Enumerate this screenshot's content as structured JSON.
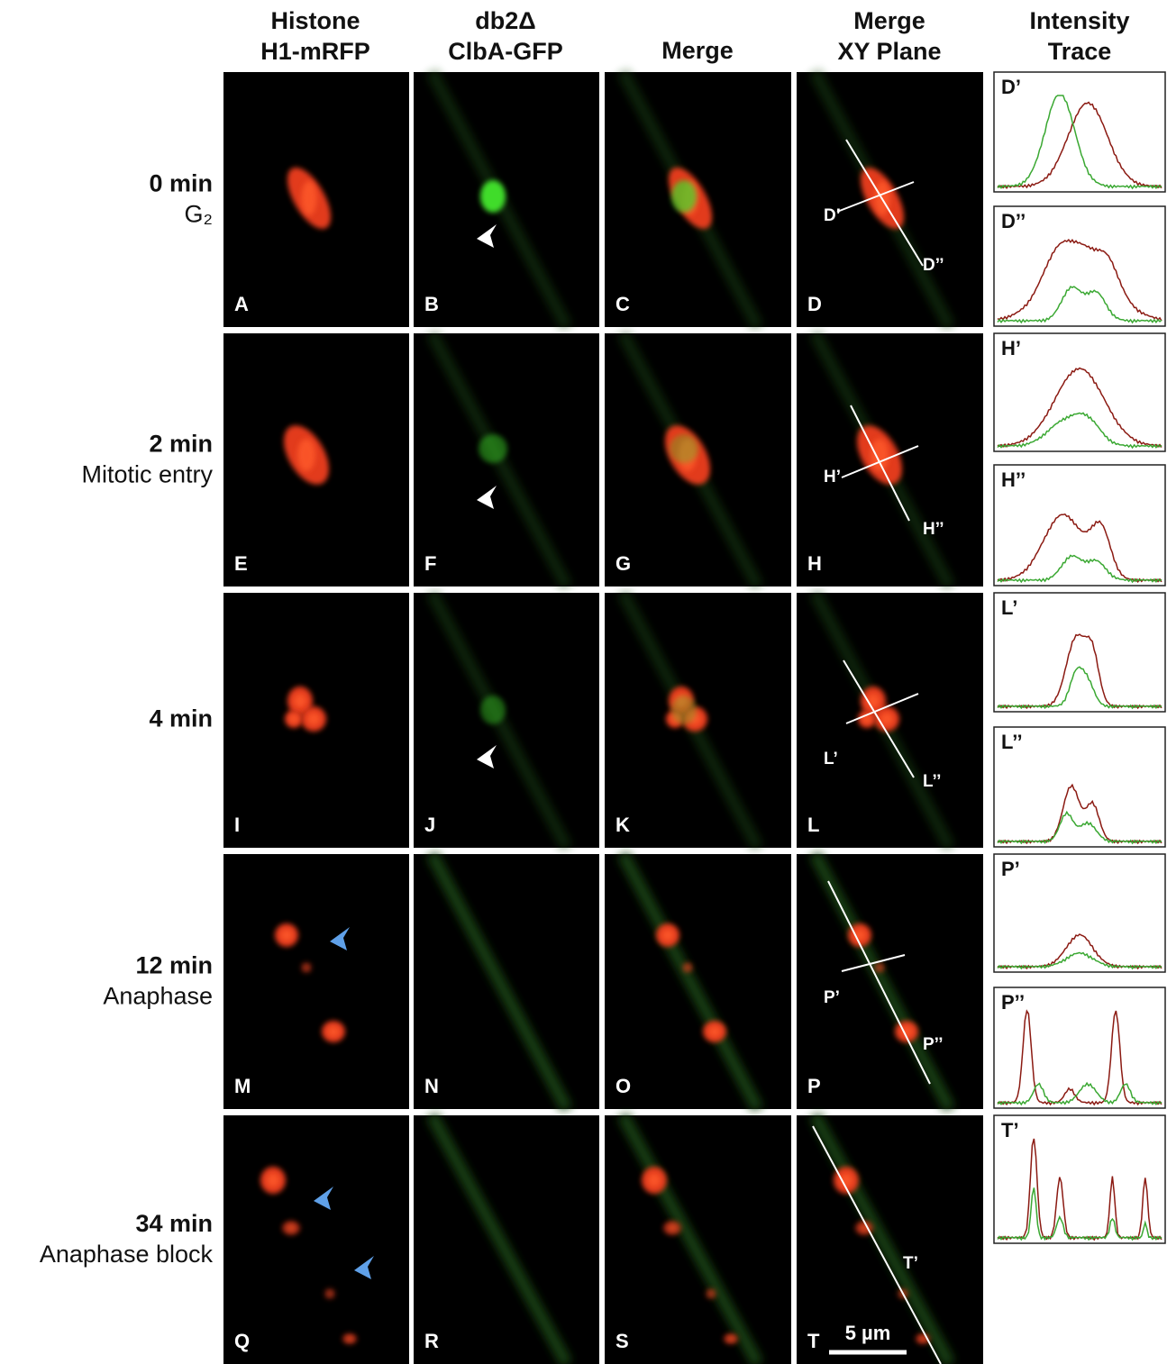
{
  "header": {
    "columns": [
      [
        "Histone",
        "H1-mRFP"
      ],
      [
        "db2Δ",
        "ClbA-GFP"
      ],
      [
        "Merge"
      ],
      [
        "Merge",
        "XY Plane"
      ],
      [
        "Intensity",
        "Trace"
      ]
    ]
  },
  "rows": [
    {
      "time": "0 min",
      "stage": "G₂",
      "panels": [
        "A",
        "B",
        "C",
        "D"
      ],
      "line_labels": [
        "D’",
        "D’’"
      ],
      "traces": [
        "D’",
        "D’’"
      ]
    },
    {
      "time": "2 min",
      "stage": "Mitotic entry",
      "panels": [
        "E",
        "F",
        "G",
        "H"
      ],
      "line_labels": [
        "H’",
        "H’’"
      ],
      "traces": [
        "H’",
        "H’’"
      ]
    },
    {
      "time": "4 min",
      "panels": [
        "I",
        "J",
        "K",
        "L"
      ],
      "line_labels": [
        "L’",
        "L’’"
      ],
      "traces": [
        "L’",
        "L’’"
      ]
    },
    {
      "time": "12 min",
      "stage": "Anaphase",
      "panels": [
        "M",
        "N",
        "O",
        "P"
      ],
      "line_labels": [
        "P’",
        "P’’"
      ],
      "traces": [
        "P’",
        "P’’"
      ]
    },
    {
      "time": "34 min",
      "stage": "Anaphase block",
      "panels": [
        "Q",
        "R",
        "S",
        "T"
      ],
      "line_labels": [
        "T’"
      ],
      "traces": [
        "T’"
      ]
    }
  ],
  "scale_bar": "5 µm"
}
